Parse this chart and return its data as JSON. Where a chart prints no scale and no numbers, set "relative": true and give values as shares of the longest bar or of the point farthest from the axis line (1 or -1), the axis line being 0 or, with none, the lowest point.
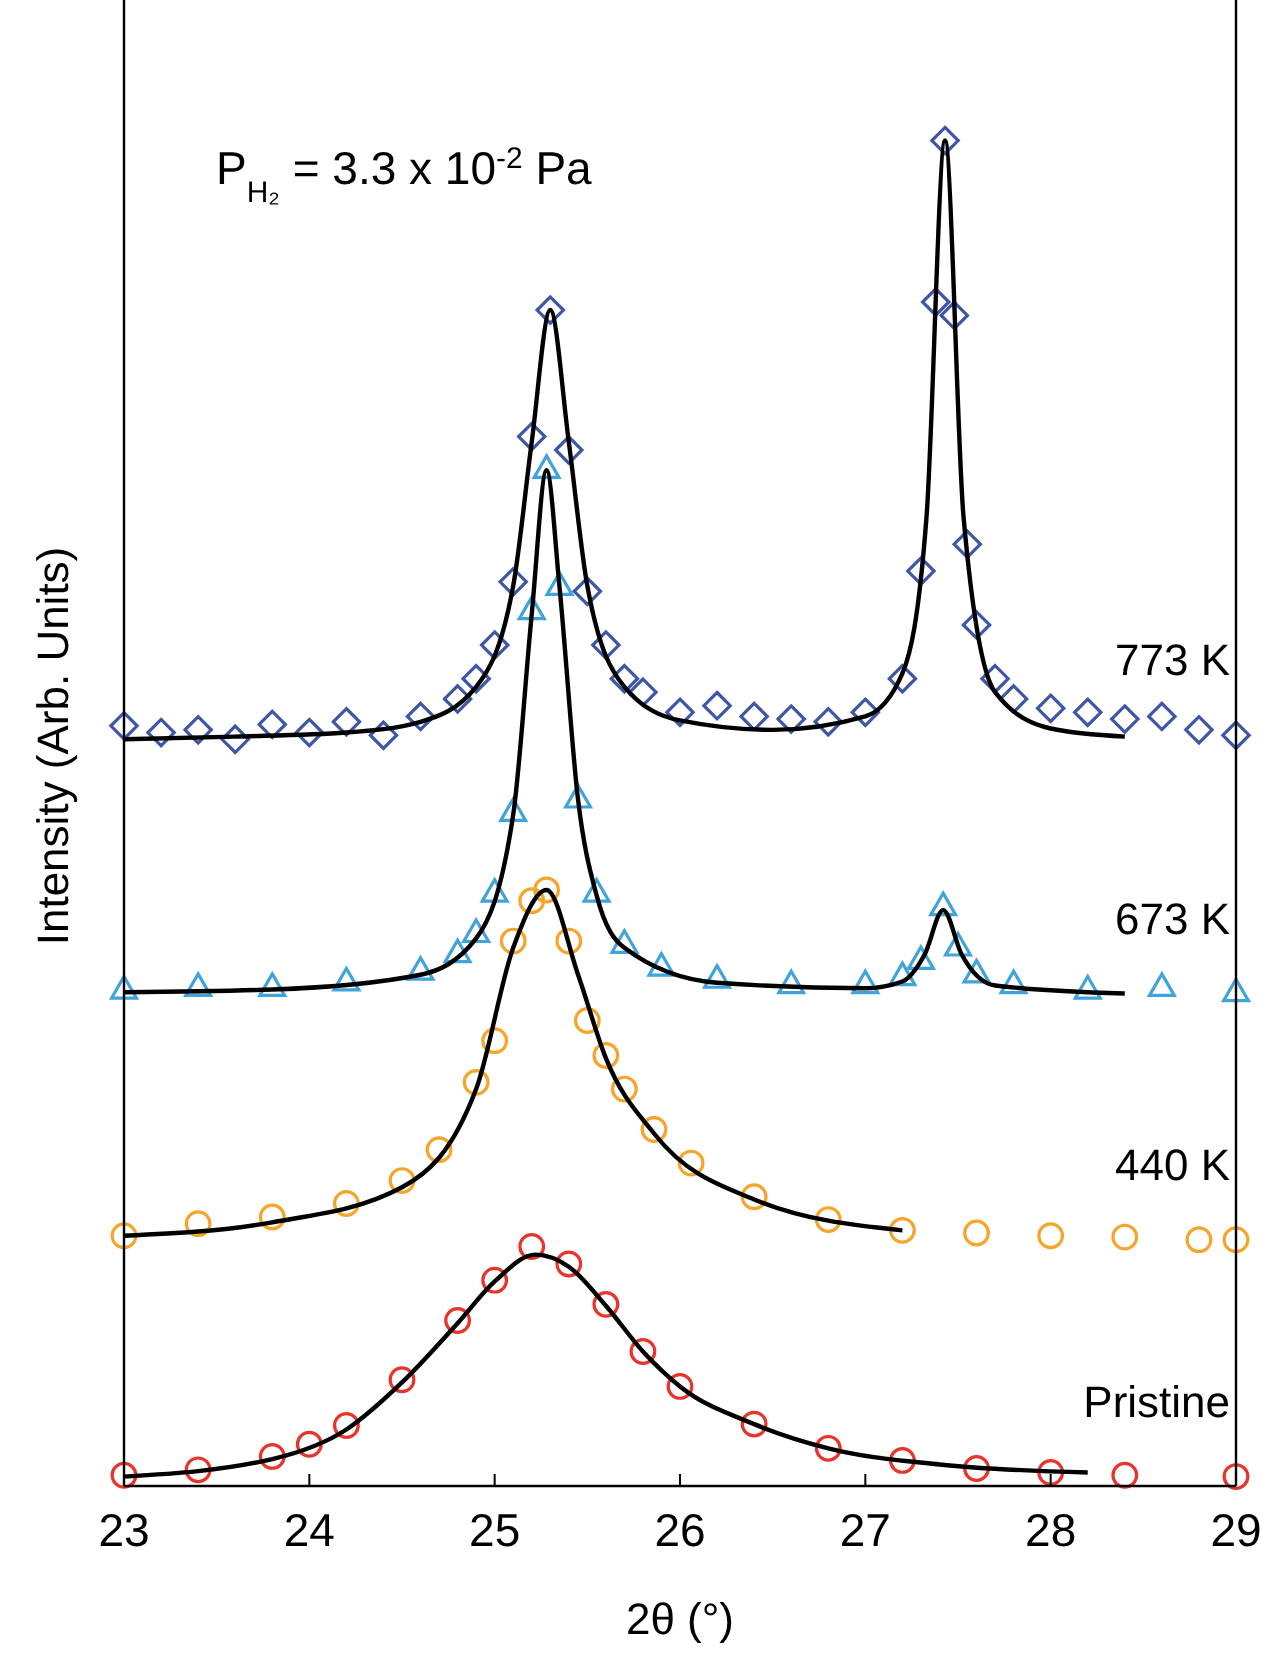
{
  "chart_data": {
    "type": "scatter",
    "relative": true,
    "xlabel": "2θ (°)",
    "ylabel": "Intensity (Arb. Units)",
    "xlim": [
      23,
      29
    ],
    "xticks": [
      23,
      24,
      25,
      26,
      27,
      28,
      29
    ],
    "grid": false,
    "annotations": [
      "P$_{H₂}$ = 3.3 x 10$^{-2}$ Pa"
    ],
    "series": [
      {
        "name": "773 K",
        "marker": "diamond",
        "color": "#3f55a5",
        "x": [
          23.0,
          23.2,
          23.4,
          23.6,
          23.8,
          24.0,
          24.2,
          24.4,
          24.6,
          24.8,
          24.9,
          25.0,
          25.1,
          25.2,
          25.3,
          25.4,
          25.5,
          25.6,
          25.7,
          25.8,
          26.0,
          26.2,
          26.4,
          26.6,
          26.8,
          27.0,
          27.2,
          27.3,
          27.38,
          27.43,
          27.48,
          27.55,
          27.6,
          27.7,
          27.8,
          28.0,
          28.2,
          28.4,
          28.6,
          28.8,
          29.0
        ],
        "values": [
          0.565,
          0.56,
          0.562,
          0.555,
          0.566,
          0.56,
          0.568,
          0.558,
          0.572,
          0.585,
          0.6,
          0.625,
          0.672,
          0.78,
          0.874,
          0.77,
          0.665,
          0.625,
          0.6,
          0.59,
          0.575,
          0.58,
          0.572,
          0.57,
          0.568,
          0.575,
          0.6,
          0.68,
          0.88,
          1.0,
          0.87,
          0.7,
          0.64,
          0.6,
          0.585,
          0.578,
          0.575,
          0.57,
          0.572,
          0.562,
          0.558
        ]
      },
      {
        "name": "673 K",
        "marker": "triangle",
        "color": "#41a3dc",
        "x": [
          23.0,
          23.4,
          23.8,
          24.2,
          24.6,
          24.8,
          24.9,
          25.0,
          25.1,
          25.2,
          25.28,
          25.35,
          25.45,
          25.55,
          25.7,
          25.9,
          26.2,
          26.6,
          27.0,
          27.2,
          27.3,
          27.42,
          27.5,
          27.6,
          27.8,
          28.2,
          28.6,
          29.0
        ],
        "values": [
          0.368,
          0.37,
          0.37,
          0.374,
          0.382,
          0.395,
          0.41,
          0.44,
          0.5,
          0.65,
          0.755,
          0.668,
          0.51,
          0.44,
          0.402,
          0.385,
          0.376,
          0.372,
          0.372,
          0.378,
          0.39,
          0.43,
          0.4,
          0.38,
          0.372,
          0.368,
          0.37,
          0.366
        ]
      },
      {
        "name": "440 K",
        "marker": "circle",
        "color": "#f5a52c",
        "x": [
          23.0,
          23.4,
          23.8,
          24.2,
          24.5,
          24.7,
          24.9,
          25.0,
          25.1,
          25.2,
          25.28,
          25.4,
          25.5,
          25.6,
          25.7,
          25.86,
          26.06,
          26.4,
          26.8,
          27.2,
          27.6,
          28.0,
          28.4,
          28.8,
          29.0
        ],
        "values": [
          0.186,
          0.195,
          0.2,
          0.21,
          0.227,
          0.25,
          0.3,
          0.331,
          0.405,
          0.435,
          0.443,
          0.405,
          0.346,
          0.32,
          0.295,
          0.265,
          0.24,
          0.215,
          0.198,
          0.19,
          0.188,
          0.186,
          0.185,
          0.183,
          0.183
        ]
      },
      {
        "name": "Pristine",
        "marker": "circle",
        "color": "#e8342b",
        "x": [
          23.0,
          23.4,
          23.8,
          24.0,
          24.2,
          24.5,
          24.8,
          25.0,
          25.2,
          25.4,
          25.6,
          25.8,
          26.0,
          26.4,
          26.8,
          27.2,
          27.6,
          28.0,
          28.4,
          29.0
        ],
        "values": [
          0.008,
          0.012,
          0.022,
          0.031,
          0.045,
          0.079,
          0.123,
          0.153,
          0.178,
          0.165,
          0.135,
          0.1,
          0.074,
          0.046,
          0.028,
          0.019,
          0.013,
          0.01,
          0.008,
          0.007
        ]
      },
      {
        "type": "line",
        "color": "#000000",
        "x": [
          23.0,
          23.6,
          24.2,
          24.6,
          24.9,
          25.1,
          25.2,
          25.3,
          25.4,
          25.5,
          25.7,
          26.0,
          26.5,
          27.0,
          27.2,
          27.33,
          27.43,
          27.53,
          27.7,
          28.0,
          28.4
        ],
        "values": [
          0.555,
          0.557,
          0.56,
          0.568,
          0.594,
          0.669,
          0.776,
          0.874,
          0.776,
          0.669,
          0.594,
          0.569,
          0.562,
          0.572,
          0.604,
          0.72,
          1.0,
          0.72,
          0.59,
          0.563,
          0.557
        ]
      },
      {
        "type": "line",
        "color": "#000000",
        "x": [
          23.0,
          23.8,
          24.6,
          24.9,
          25.1,
          25.2,
          25.28,
          25.35,
          25.45,
          25.55,
          25.7,
          26.2,
          27.0,
          27.2,
          27.32,
          27.42,
          27.52,
          27.7,
          28.4
        ],
        "values": [
          0.367,
          0.369,
          0.38,
          0.407,
          0.499,
          0.648,
          0.755,
          0.668,
          0.51,
          0.439,
          0.4,
          0.374,
          0.37,
          0.375,
          0.395,
          0.428,
          0.395,
          0.372,
          0.366
        ]
      },
      {
        "type": "line",
        "color": "#000000",
        "x": [
          23.0,
          23.8,
          24.5,
          24.9,
          25.1,
          25.28,
          25.45,
          25.6,
          25.86,
          26.4,
          27.2
        ],
        "values": [
          0.186,
          0.196,
          0.222,
          0.295,
          0.4,
          0.443,
          0.38,
          0.318,
          0.262,
          0.213,
          0.19
        ]
      },
      {
        "type": "line",
        "color": "#000000",
        "x": [
          23.0,
          23.8,
          24.2,
          24.5,
          24.8,
          25.0,
          25.22,
          25.4,
          25.6,
          25.8,
          26.0,
          26.4,
          26.8,
          27.4,
          28.2
        ],
        "values": [
          0.007,
          0.02,
          0.042,
          0.077,
          0.121,
          0.152,
          0.172,
          0.163,
          0.134,
          0.1,
          0.074,
          0.046,
          0.028,
          0.016,
          0.01
        ]
      }
    ]
  }
}
